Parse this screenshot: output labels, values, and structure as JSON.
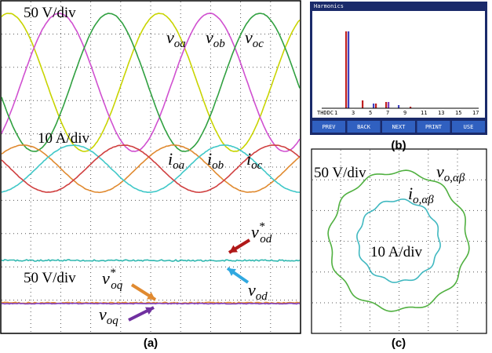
{
  "panel_a": {
    "caption": "(a)",
    "voltage_scale": "50 V/div",
    "current_scale": "10 A/div",
    "dq_scale": "50 V/div",
    "voltage_labels": [
      {
        "symbol": "v",
        "subscript": "oa"
      },
      {
        "symbol": "v",
        "subscript": "ob"
      },
      {
        "symbol": "v",
        "subscript": "oc"
      }
    ],
    "current_labels": [
      {
        "symbol": "i",
        "subscript": "oa"
      },
      {
        "symbol": "i",
        "subscript": "ob"
      },
      {
        "symbol": "i",
        "subscript": "oc"
      }
    ],
    "vod_ref": {
      "symbol": "v",
      "superscript": "*",
      "subscript": "od"
    },
    "vod": {
      "symbol": "v",
      "subscript": "od"
    },
    "voq_ref": {
      "symbol": "v",
      "superscript": "*",
      "subscript": "oq"
    },
    "voq": {
      "symbol": "v",
      "subscript": "oq"
    }
  },
  "panel_b": {
    "caption": "(b)",
    "title": "Harmonics",
    "buttons": [
      "PREV",
      "BACK",
      "NEXT",
      "PRINT",
      "USE"
    ],
    "orders": [
      "THDDC",
      "1",
      "3",
      "5",
      "7",
      "9",
      "11",
      "13",
      "15",
      "17"
    ]
  },
  "panel_c": {
    "caption": "(c)",
    "voltage_scale": "50 V/div",
    "current_scale": "10 A/div",
    "voltage_label": {
      "symbol": "v",
      "subscript": "o,αβ"
    },
    "current_label": {
      "symbol": "i",
      "subscript": "o,αβ"
    }
  }
}
